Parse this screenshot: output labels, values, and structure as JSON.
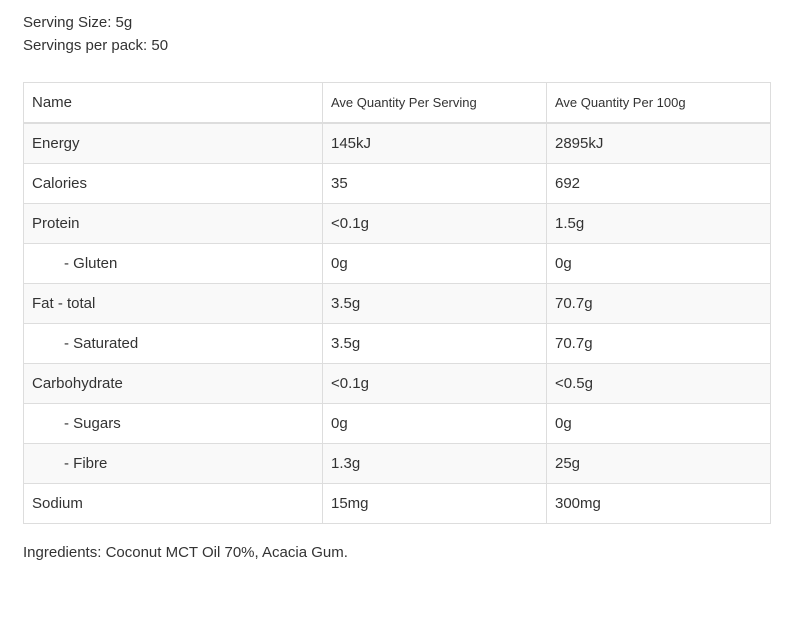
{
  "serving_size": "Serving Size: 5g",
  "servings_per_pack": "Servings per pack: 50",
  "table": {
    "headers": [
      "Name",
      "Ave Quantity Per Serving",
      "Ave Quantity Per 100g"
    ],
    "rows": [
      {
        "name": "Energy",
        "serving": "145kJ",
        "per100": "2895kJ"
      },
      {
        "name": "Calories",
        "serving": "35",
        "per100": "692"
      },
      {
        "name": "Protein",
        "serving": "<0.1g",
        "per100": "1.5g"
      },
      {
        "name": "- Gluten",
        "serving": "0g",
        "per100": "0g"
      },
      {
        "name": "Fat - total",
        "serving": "3.5g",
        "per100": "70.7g"
      },
      {
        "name": "- Saturated",
        "serving": "3.5g",
        "per100": "70.7g"
      },
      {
        "name": "Carbohydrate",
        "serving": "<0.1g",
        "per100": "<0.5g"
      },
      {
        "name": "- Sugars",
        "serving": "0g",
        "per100": "0g"
      },
      {
        "name": "- Fibre",
        "serving": "1.3g",
        "per100": "25g"
      },
      {
        "name": "Sodium",
        "serving": "15mg",
        "per100": "300mg"
      }
    ]
  },
  "ingredients": {
    "label": "Ingredients:",
    "text": "Coconut MCT Oil 70%, Acacia Gum."
  }
}
